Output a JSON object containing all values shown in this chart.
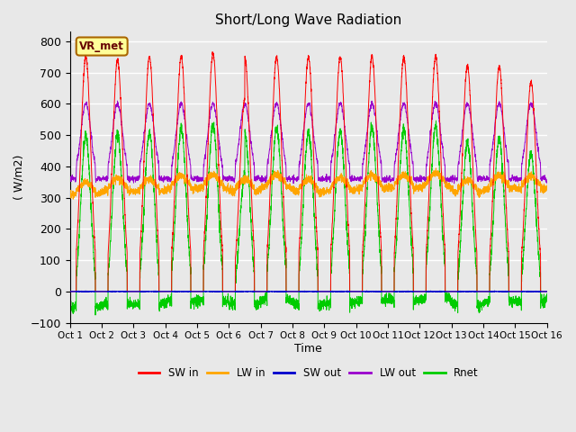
{
  "title": "Short/Long Wave Radiation",
  "xlabel": "Time",
  "ylabel": "( W/m2)",
  "ylim": [
    -100,
    830
  ],
  "xlim": [
    0,
    15
  ],
  "xtick_labels": [
    "Oct 1",
    "Oct 2",
    "Oct 3",
    "Oct 4",
    "Oct 5",
    "Oct 6",
    "Oct 7",
    "Oct 8",
    "Oct 9",
    "Oct 10",
    "Oct 11",
    "Oct 12",
    "Oct 13",
    "Oct 14",
    "Oct 15",
    "Oct 16"
  ],
  "ytick_values": [
    -100,
    0,
    100,
    200,
    300,
    400,
    500,
    600,
    700,
    800
  ],
  "station_label": "VR_met",
  "colors": {
    "SW_in": "#ff0000",
    "LW_in": "#ffa500",
    "SW_out": "#0000cc",
    "LW_out": "#9900cc",
    "Rnet": "#00cc00"
  },
  "legend_labels": [
    "SW in",
    "LW in",
    "SW out",
    "LW out",
    "Rnet"
  ],
  "background_color": "#e8e8e8",
  "plot_bg_color": "#e8e8e8",
  "grid_color": "#ffffff",
  "n_days": 15,
  "pts_per_day": 288
}
